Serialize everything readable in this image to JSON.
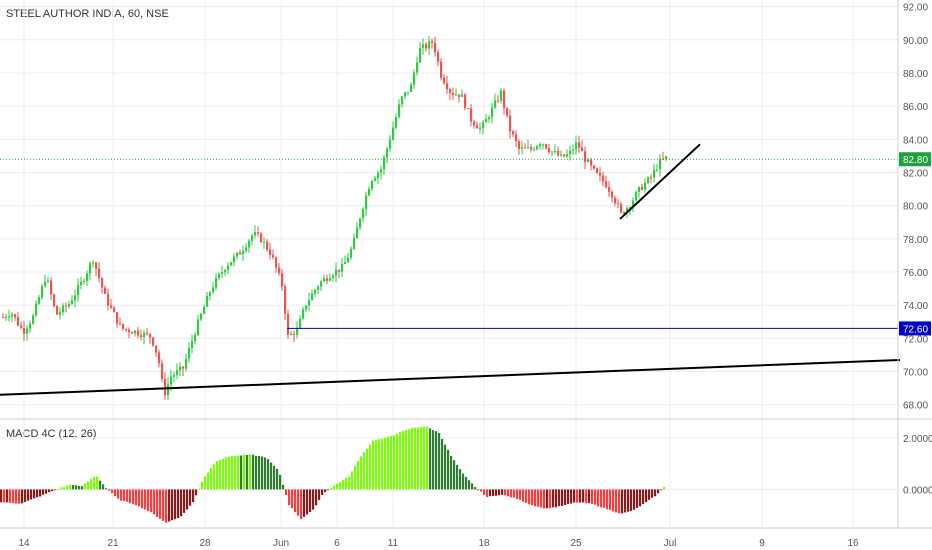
{
  "header": {
    "symbol_title": "STEEL AUTHOR INDIA, 60, NSE",
    "indicator_title": "MACD 4C (12, 26)"
  },
  "colors": {
    "up": "#26a69a",
    "up_bright": "#2ecc40",
    "down": "#ef5350",
    "hist_pos_dark": "#2e7d32",
    "hist_pos_light": "#76ff03",
    "hist_neg_dark": "#8b1a1a",
    "hist_neg_light": "#ff3b3b",
    "level_line": "#0000cc",
    "current_line": "#19a33a",
    "trend_line": "#000000",
    "grid": "#ececec"
  },
  "chart_data": [
    {
      "type": "candlestick",
      "title": "STEEL AUTHOR INDIA, 60, NSE",
      "y_axis": {
        "ticks": [
          "92.00",
          "90.00",
          "88.00",
          "86.00",
          "84.00",
          "82.00",
          "80.00",
          "78.00",
          "76.00",
          "74.00",
          "72.00",
          "70.00",
          "68.00"
        ],
        "ylim": [
          67.2,
          92.4
        ]
      },
      "x_axis": {
        "ticks": [
          "14",
          "21",
          "28",
          "Jun",
          "6",
          "11",
          "18",
          "25",
          "Jul",
          "9",
          "16"
        ]
      },
      "price_path": [
        [
          0,
          73.2
        ],
        [
          10,
          73.6
        ],
        [
          22,
          72.4
        ],
        [
          32,
          73.3
        ],
        [
          45,
          75.8
        ],
        [
          55,
          73.4
        ],
        [
          68,
          74.1
        ],
        [
          80,
          75.3
        ],
        [
          92,
          76.8
        ],
        [
          104,
          74.5
        ],
        [
          120,
          72.6
        ],
        [
          135,
          72.4
        ],
        [
          150,
          72.1
        ],
        [
          157,
          70.9
        ],
        [
          163,
          68.6
        ],
        [
          170,
          69.7
        ],
        [
          182,
          70.2
        ],
        [
          195,
          72.6
        ],
        [
          210,
          75.0
        ],
        [
          225,
          76.4
        ],
        [
          238,
          77.1
        ],
        [
          252,
          78.3
        ],
        [
          260,
          78.0
        ],
        [
          270,
          77.1
        ],
        [
          281,
          75.2
        ],
        [
          287,
          72.1
        ],
        [
          296,
          72.5
        ],
        [
          305,
          74.1
        ],
        [
          318,
          75.3
        ],
        [
          330,
          75.9
        ],
        [
          342,
          76.3
        ],
        [
          352,
          77.6
        ],
        [
          360,
          79.6
        ],
        [
          370,
          81.6
        ],
        [
          380,
          82.2
        ],
        [
          390,
          84.3
        ],
        [
          400,
          86.4
        ],
        [
          410,
          87.2
        ],
        [
          418,
          89.4
        ],
        [
          425,
          89.6
        ],
        [
          432,
          89.9
        ],
        [
          440,
          87.9
        ],
        [
          450,
          86.8
        ],
        [
          460,
          86.7
        ],
        [
          470,
          85.2
        ],
        [
          480,
          84.6
        ],
        [
          490,
          85.7
        ],
        [
          500,
          86.8
        ],
        [
          508,
          84.7
        ],
        [
          518,
          83.4
        ],
        [
          530,
          83.4
        ],
        [
          540,
          83.9
        ],
        [
          550,
          83.3
        ],
        [
          560,
          82.9
        ],
        [
          568,
          83.1
        ],
        [
          576,
          83.8
        ],
        [
          585,
          82.7
        ],
        [
          595,
          81.9
        ],
        [
          605,
          81.3
        ],
        [
          612,
          80.6
        ],
        [
          620,
          79.5
        ],
        [
          630,
          80.2
        ],
        [
          640,
          81.1
        ],
        [
          650,
          81.7
        ],
        [
          658,
          82.6
        ],
        [
          666,
          82.9
        ]
      ],
      "levels": [
        {
          "label": "72.60",
          "value": 72.6,
          "style": "blue-horizontal"
        },
        {
          "label": "82.80",
          "value": 82.8,
          "style": "green-dotted-current"
        }
      ],
      "trendlines": [
        {
          "name": "long-support",
          "from": {
            "bar_x": 0,
            "value": 68.6
          },
          "to": {
            "bar_x": 900,
            "value": 70.7
          }
        },
        {
          "name": "short-rising",
          "from": {
            "bar_x": 620,
            "value": 79.2
          },
          "to": {
            "bar_x": 700,
            "value": 83.7
          }
        }
      ]
    },
    {
      "type": "histogram",
      "title": "MACD 4C (12, 26)",
      "y_axis": {
        "ticks": [
          "2.0000",
          "0.0000"
        ],
        "ylim": [
          -1.5,
          2.7
        ]
      },
      "hist_path": [
        [
          0,
          -0.5
        ],
        [
          20,
          -0.55
        ],
        [
          40,
          -0.25
        ],
        [
          55,
          0.0
        ],
        [
          70,
          0.2
        ],
        [
          80,
          0.1
        ],
        [
          95,
          0.55
        ],
        [
          105,
          0.05
        ],
        [
          118,
          -0.4
        ],
        [
          135,
          -0.6
        ],
        [
          150,
          -0.9
        ],
        [
          165,
          -1.3
        ],
        [
          180,
          -1.05
        ],
        [
          192,
          -0.5
        ],
        [
          202,
          0.4
        ],
        [
          215,
          1.1
        ],
        [
          230,
          1.3
        ],
        [
          250,
          1.35
        ],
        [
          265,
          1.25
        ],
        [
          278,
          0.7
        ],
        [
          288,
          -0.6
        ],
        [
          300,
          -1.15
        ],
        [
          312,
          -0.8
        ],
        [
          322,
          -0.15
        ],
        [
          335,
          0.2
        ],
        [
          348,
          0.5
        ],
        [
          360,
          1.3
        ],
        [
          372,
          1.9
        ],
        [
          385,
          2.0
        ],
        [
          398,
          2.2
        ],
        [
          412,
          2.4
        ],
        [
          425,
          2.45
        ],
        [
          438,
          2.2
        ],
        [
          450,
          1.3
        ],
        [
          462,
          0.6
        ],
        [
          474,
          0.1
        ],
        [
          486,
          -0.3
        ],
        [
          500,
          -0.2
        ],
        [
          515,
          -0.35
        ],
        [
          530,
          -0.6
        ],
        [
          545,
          -0.75
        ],
        [
          560,
          -0.65
        ],
        [
          575,
          -0.5
        ],
        [
          590,
          -0.55
        ],
        [
          605,
          -0.75
        ],
        [
          620,
          -0.95
        ],
        [
          633,
          -0.8
        ],
        [
          645,
          -0.5
        ],
        [
          656,
          -0.2
        ],
        [
          664,
          0.15
        ]
      ]
    }
  ],
  "axis_labels": {
    "price_ticks": [
      "92.00",
      "90.00",
      "88.00",
      "86.00",
      "84.00",
      "82.00",
      "80.00",
      "78.00",
      "76.00",
      "74.00",
      "72.00",
      "70.00",
      "68.00"
    ],
    "macd_ticks": [
      "2.0000",
      "0.0000"
    ],
    "time_ticks": [
      "14",
      "21",
      "28",
      "Jun",
      "6",
      "11",
      "18",
      "25",
      "Jul",
      "9",
      "16"
    ]
  }
}
